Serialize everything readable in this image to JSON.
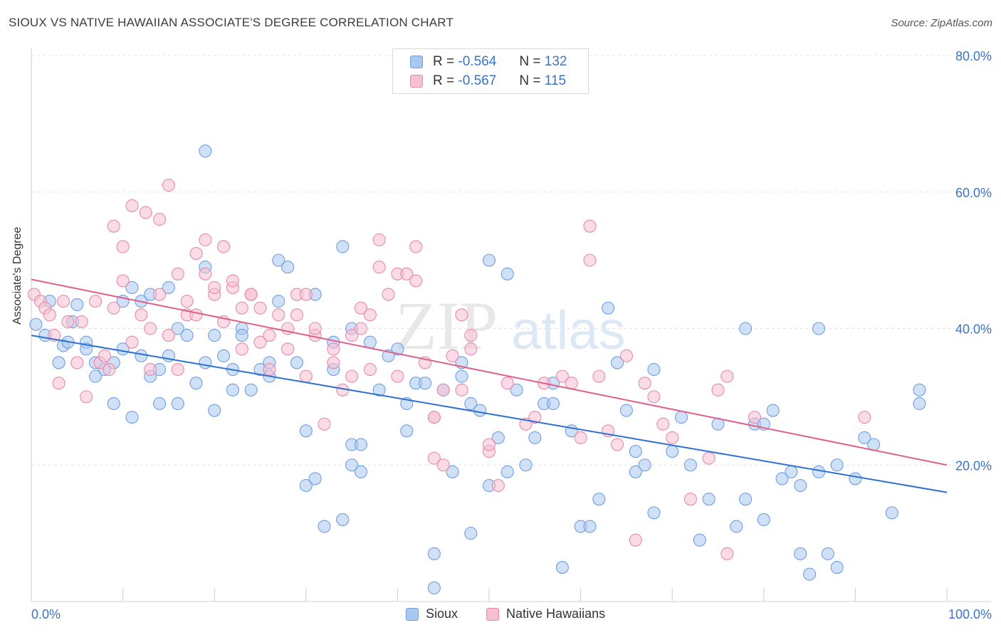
{
  "title": "SIOUX VS NATIVE HAWAIIAN ASSOCIATE'S DEGREE CORRELATION CHART",
  "source": "Source: ZipAtlas.com",
  "watermark": {
    "zip": "ZIP",
    "atlas": "atlas"
  },
  "legend_stats": [
    {
      "r_label": "R =",
      "r": "-0.564",
      "n_label": "N =",
      "n": "132",
      "color": "#a9c8f0",
      "border": "#6e9fe0"
    },
    {
      "r_label": "R =",
      "r": "-0.567",
      "n_label": "N =",
      "n": "115",
      "color": "#f7bfd2",
      "border": "#e58aab"
    }
  ],
  "bottom_legend": [
    "Sioux",
    "Native Hawaiians"
  ],
  "chart_data": {
    "type": "scatter",
    "ylabel": "Associate's Degree",
    "xlabel": "",
    "xlim": [
      0,
      100
    ],
    "ylim": [
      0,
      80
    ],
    "x_tick_labels": [
      "0.0%",
      "100.0%"
    ],
    "y_tick_labels": [
      "20.0%",
      "40.0%",
      "60.0%",
      "80.0%"
    ],
    "y_ticks": [
      20,
      40,
      60,
      80
    ],
    "grid": true,
    "series": [
      {
        "name": "Sioux",
        "color": "#6e9fe0",
        "fill": "#a9c8f0",
        "line_color": "#2f6fd1",
        "trend": [
          [
            0,
            39.0
          ],
          [
            100,
            16.0
          ]
        ],
        "points": [
          [
            0.5,
            40.6
          ],
          [
            1.5,
            39
          ],
          [
            2,
            44
          ],
          [
            3,
            35
          ],
          [
            3.5,
            37.5
          ],
          [
            4,
            38
          ],
          [
            4.5,
            41
          ],
          [
            5,
            43.5
          ],
          [
            6,
            38
          ],
          [
            6,
            37
          ],
          [
            7,
            33
          ],
          [
            7,
            35
          ],
          [
            8,
            34
          ],
          [
            9,
            35
          ],
          [
            9,
            29
          ],
          [
            10,
            37
          ],
          [
            10,
            44
          ],
          [
            11,
            27
          ],
          [
            11,
            46
          ],
          [
            12,
            36
          ],
          [
            12,
            44
          ],
          [
            13,
            45
          ],
          [
            13,
            33
          ],
          [
            14,
            34
          ],
          [
            14,
            29
          ],
          [
            15,
            36
          ],
          [
            15,
            46
          ],
          [
            16,
            29
          ],
          [
            16,
            40
          ],
          [
            17,
            39
          ],
          [
            18,
            32
          ],
          [
            19,
            49
          ],
          [
            19,
            35
          ],
          [
            19,
            66
          ],
          [
            20,
            39
          ],
          [
            20,
            28
          ],
          [
            21,
            36
          ],
          [
            22,
            34
          ],
          [
            22,
            31
          ],
          [
            23,
            40
          ],
          [
            23,
            39
          ],
          [
            24,
            31
          ],
          [
            25,
            34
          ],
          [
            26,
            35
          ],
          [
            26,
            33
          ],
          [
            27,
            44
          ],
          [
            27,
            50
          ],
          [
            28,
            49
          ],
          [
            29,
            35
          ],
          [
            30,
            25
          ],
          [
            30,
            17
          ],
          [
            31,
            18
          ],
          [
            31,
            45
          ],
          [
            32,
            11
          ],
          [
            33,
            38
          ],
          [
            33,
            34
          ],
          [
            34,
            52
          ],
          [
            34,
            12
          ],
          [
            35,
            23
          ],
          [
            35,
            40
          ],
          [
            35,
            20
          ],
          [
            36,
            23
          ],
          [
            36,
            19
          ],
          [
            37,
            38
          ],
          [
            38,
            31
          ],
          [
            39,
            36
          ],
          [
            40,
            37
          ],
          [
            41,
            29
          ],
          [
            41,
            25
          ],
          [
            42,
            32
          ],
          [
            43,
            32
          ],
          [
            44,
            7
          ],
          [
            44,
            2
          ],
          [
            45,
            31
          ],
          [
            46,
            19
          ],
          [
            47,
            35
          ],
          [
            47,
            33
          ],
          [
            48,
            29
          ],
          [
            48,
            10
          ],
          [
            49,
            28
          ],
          [
            50,
            50
          ],
          [
            50,
            17
          ],
          [
            51,
            24
          ],
          [
            52,
            48
          ],
          [
            52,
            19
          ],
          [
            53,
            31
          ],
          [
            54,
            20
          ],
          [
            55,
            24
          ],
          [
            56,
            29
          ],
          [
            57,
            29
          ],
          [
            57,
            32
          ],
          [
            58,
            5
          ],
          [
            59,
            25
          ],
          [
            60,
            11
          ],
          [
            61,
            11
          ],
          [
            62,
            15
          ],
          [
            63,
            43
          ],
          [
            64,
            35
          ],
          [
            65,
            28
          ],
          [
            66,
            19
          ],
          [
            66,
            22
          ],
          [
            67,
            20
          ],
          [
            68,
            34
          ],
          [
            68,
            13
          ],
          [
            70,
            22
          ],
          [
            71,
            27
          ],
          [
            72,
            20
          ],
          [
            73,
            9
          ],
          [
            74,
            15
          ],
          [
            75,
            26
          ],
          [
            77,
            11
          ],
          [
            78,
            15
          ],
          [
            78,
            40
          ],
          [
            79,
            26
          ],
          [
            80,
            12
          ],
          [
            80,
            26
          ],
          [
            81,
            28
          ],
          [
            82,
            18
          ],
          [
            83,
            19
          ],
          [
            84,
            7
          ],
          [
            84,
            17
          ],
          [
            85,
            4
          ],
          [
            86,
            19
          ],
          [
            86,
            40
          ],
          [
            87,
            7
          ],
          [
            88,
            5
          ],
          [
            88,
            20
          ],
          [
            90,
            18
          ],
          [
            91,
            24
          ],
          [
            92,
            23
          ],
          [
            94,
            13
          ],
          [
            97,
            31
          ],
          [
            97,
            29
          ]
        ]
      },
      {
        "name": "Native Hawaiians",
        "color": "#e58aab",
        "fill": "#f7bfd2",
        "line_color": "#e0608c",
        "trend": [
          [
            0,
            47.2
          ],
          [
            100,
            20.0
          ]
        ],
        "points": [
          [
            0.3,
            45
          ],
          [
            1,
            44
          ],
          [
            1.5,
            43
          ],
          [
            2,
            42
          ],
          [
            2.5,
            39
          ],
          [
            3,
            32
          ],
          [
            3.5,
            44
          ],
          [
            4,
            41
          ],
          [
            5,
            35
          ],
          [
            5.5,
            41
          ],
          [
            6,
            30
          ],
          [
            7,
            44
          ],
          [
            7.5,
            35
          ],
          [
            8,
            36
          ],
          [
            8.5,
            34
          ],
          [
            9,
            55
          ],
          [
            9,
            43
          ],
          [
            10,
            52
          ],
          [
            10,
            47
          ],
          [
            11,
            38
          ],
          [
            11,
            58
          ],
          [
            12,
            42
          ],
          [
            12.5,
            57
          ],
          [
            13,
            40
          ],
          [
            13,
            34
          ],
          [
            14,
            56
          ],
          [
            14,
            45
          ],
          [
            15,
            39
          ],
          [
            15,
            61
          ],
          [
            16,
            34
          ],
          [
            16,
            48
          ],
          [
            17,
            44
          ],
          [
            17,
            42
          ],
          [
            18,
            51
          ],
          [
            18,
            42
          ],
          [
            19,
            53
          ],
          [
            19,
            48
          ],
          [
            20,
            45
          ],
          [
            20,
            46
          ],
          [
            21,
            41
          ],
          [
            21,
            52
          ],
          [
            22,
            46
          ],
          [
            22,
            47
          ],
          [
            23,
            37
          ],
          [
            23,
            43
          ],
          [
            24,
            45
          ],
          [
            24,
            45
          ],
          [
            25,
            38
          ],
          [
            25,
            43
          ],
          [
            26,
            39
          ],
          [
            26,
            34
          ],
          [
            27,
            42
          ],
          [
            28,
            40
          ],
          [
            28,
            37
          ],
          [
            29,
            45
          ],
          [
            29,
            42
          ],
          [
            30,
            33
          ],
          [
            30,
            45
          ],
          [
            31,
            39
          ],
          [
            31,
            40
          ],
          [
            32,
            26
          ],
          [
            33,
            37
          ],
          [
            33,
            35
          ],
          [
            34,
            31
          ],
          [
            35,
            39
          ],
          [
            35,
            33
          ],
          [
            36,
            40
          ],
          [
            36,
            43
          ],
          [
            37,
            42
          ],
          [
            37,
            34
          ],
          [
            38,
            53
          ],
          [
            38,
            49
          ],
          [
            39,
            45
          ],
          [
            40,
            48
          ],
          [
            40,
            33
          ],
          [
            41,
            48
          ],
          [
            42,
            52
          ],
          [
            42,
            47
          ],
          [
            43,
            35
          ],
          [
            44,
            27
          ],
          [
            44,
            27
          ],
          [
            44,
            21
          ],
          [
            45,
            31
          ],
          [
            45,
            20
          ],
          [
            46,
            36
          ],
          [
            47,
            31
          ],
          [
            47,
            42
          ],
          [
            48,
            37
          ],
          [
            48,
            39
          ],
          [
            50,
            22
          ],
          [
            50,
            23
          ],
          [
            51,
            17
          ],
          [
            52,
            32
          ],
          [
            54,
            26
          ],
          [
            55,
            27
          ],
          [
            56,
            32
          ],
          [
            58,
            33
          ],
          [
            59,
            32
          ],
          [
            60,
            24
          ],
          [
            61,
            55
          ],
          [
            61,
            50
          ],
          [
            62,
            33
          ],
          [
            63,
            25
          ],
          [
            64,
            23
          ],
          [
            65,
            36
          ],
          [
            66,
            9
          ],
          [
            67,
            32
          ],
          [
            68,
            30
          ],
          [
            69,
            26
          ],
          [
            70,
            24
          ],
          [
            72,
            15
          ],
          [
            74,
            21
          ],
          [
            75,
            31
          ],
          [
            76,
            33
          ],
          [
            76,
            7
          ],
          [
            79,
            27
          ],
          [
            91,
            27
          ]
        ]
      }
    ]
  }
}
